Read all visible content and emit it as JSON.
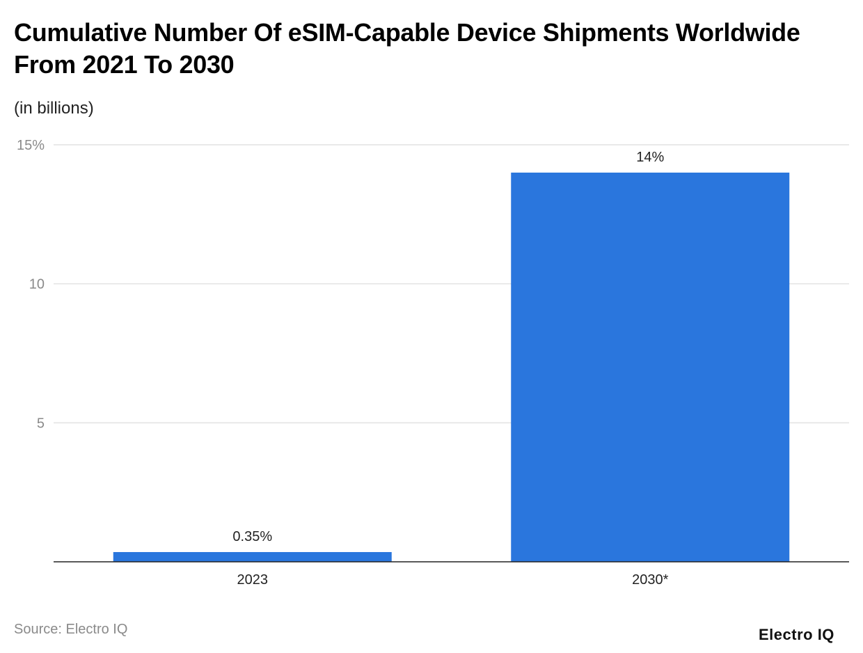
{
  "chart_data": {
    "type": "bar",
    "title": "Cumulative Number Of eSIM-Capable Device Shipments Worldwide From 2021 To 2030",
    "subtitle": "(in billions)",
    "categories": [
      "2023",
      "2030*"
    ],
    "values": [
      0.35,
      14
    ],
    "data_labels": [
      "0.35%",
      "14%"
    ],
    "yticks": [
      5,
      10,
      15
    ],
    "ytick_labels": [
      "5",
      "10",
      "15%"
    ],
    "ylim": [
      0,
      15
    ],
    "grid": true,
    "bar_color": "#2a76dd",
    "xlabel": "",
    "ylabel": ""
  },
  "source": "Source: Electro IQ",
  "logo": "Electro IQ"
}
